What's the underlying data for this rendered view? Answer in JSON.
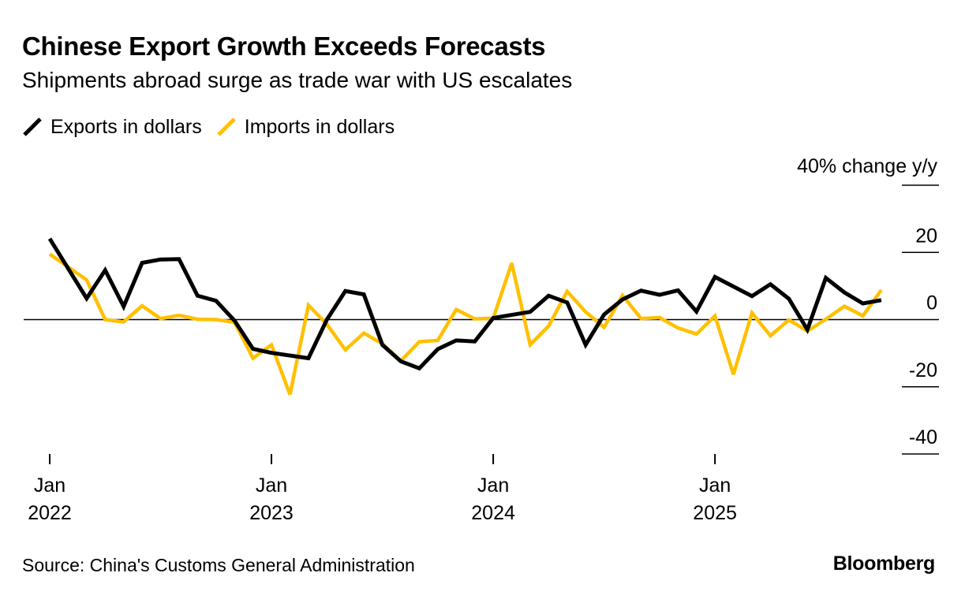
{
  "title": "Chinese Export Growth Exceeds Forecasts",
  "subtitle": "Shipments abroad surge as trade war with US escalates",
  "source": "Source: China's Customs General Administration",
  "brand": "Bloomberg",
  "colors": {
    "exports": "#000000",
    "imports": "#FFC000",
    "zero_line": "#000000"
  },
  "chart_data": {
    "type": "line",
    "y_unit_label": "40% change y/y",
    "ylim": [
      -40,
      40
    ],
    "yticks": [
      40,
      20,
      0,
      -20,
      -40
    ],
    "ytick_labels": [
      "",
      "20",
      "0",
      "-20",
      "-40"
    ],
    "grid": false,
    "legend_placement": "top-left",
    "x_start": "2022-01",
    "x_end": "2025-06",
    "x_ticks": [
      {
        "date": "2022-01",
        "month": "Jan",
        "year": "2022"
      },
      {
        "date": "2023-01",
        "month": "Jan",
        "year": "2023"
      },
      {
        "date": "2024-01",
        "month": "Jan",
        "year": "2024"
      },
      {
        "date": "2025-01",
        "month": "Jan",
        "year": "2025"
      }
    ],
    "series": [
      {
        "name": "Exports in dollars",
        "values": [
          24.1,
          6.3,
          14.7,
          3.9,
          16.9,
          17.9,
          18.0,
          7.1,
          5.6,
          -0.3,
          -8.7,
          -9.9,
          -11.5,
          0.0,
          8.5,
          7.5,
          -7.5,
          -12.4,
          -14.5,
          -8.8,
          -6.2,
          -6.5,
          0.5,
          2.3,
          7.1,
          5.1,
          -7.5,
          1.5,
          6.0,
          8.6,
          7.4,
          8.7,
          2.4,
          12.7,
          7.0,
          10.5,
          6.2,
          -3.0,
          12.4,
          8.1,
          4.8,
          5.8
        ],
        "dates": [
          "2022-01",
          "2022-03",
          "2022-04",
          "2022-05",
          "2022-06",
          "2022-07",
          "2022-08",
          "2022-09",
          "2022-10",
          "2022-11",
          "2022-12",
          "2023-01",
          "2023-03",
          "2023-04",
          "2023-05",
          "2023-06",
          "2023-07",
          "2023-08",
          "2023-09",
          "2023-10",
          "2023-11",
          "2023-12",
          "2024-01",
          "2024-03",
          "2024-04",
          "2024-05",
          "2024-06",
          "2024-07",
          "2024-08",
          "2024-09",
          "2024-10",
          "2024-11",
          "2024-12",
          "2025-01",
          "2025-03",
          "2025-04",
          "2025-05",
          "2025-06",
          "2025-07",
          "2025-08",
          "2025-09",
          "2025-10"
        ]
      },
      {
        "name": "Imports in dollars",
        "values": [
          19.5,
          11.8,
          0.0,
          -0.7,
          4.1,
          0.3,
          1.3,
          0.1,
          0.0,
          -0.8,
          -11.5,
          -7.5,
          -22.3,
          4.3,
          -1.4,
          -9.0,
          -4.0,
          -7.2,
          -12.3,
          -6.6,
          -6.2,
          3.0,
          0.2,
          0.4,
          16.8,
          -7.5,
          -1.9,
          8.4,
          2.3,
          -2.3,
          7.2,
          0.3,
          0.6,
          -2.5,
          -4.3,
          1.1,
          -16.3,
          2.0,
          -4.8,
          -0.1,
          -3.4,
          0.1,
          4.0,
          1.1,
          8.8
        ],
        "dates": [
          "2022-01",
          "2022-03",
          "2022-04",
          "2022-05",
          "2022-06",
          "2022-07",
          "2022-08",
          "2022-09",
          "2022-10",
          "2022-11",
          "2022-12",
          "2023-01",
          "2023-02",
          "2023-03",
          "2023-04",
          "2023-05",
          "2023-06",
          "2023-07",
          "2023-08",
          "2023-09",
          "2023-10",
          "2023-11",
          "2023-12",
          "2024-01",
          "2024-02",
          "2024-03",
          "2024-04",
          "2024-05",
          "2024-06",
          "2024-07",
          "2024-08",
          "2024-09",
          "2024-10",
          "2024-11",
          "2024-12",
          "2025-01",
          "2025-02",
          "2025-03",
          "2025-04",
          "2025-05",
          "2025-06",
          "2025-07",
          "2025-08",
          "2025-09",
          "2025-10"
        ]
      }
    ]
  }
}
